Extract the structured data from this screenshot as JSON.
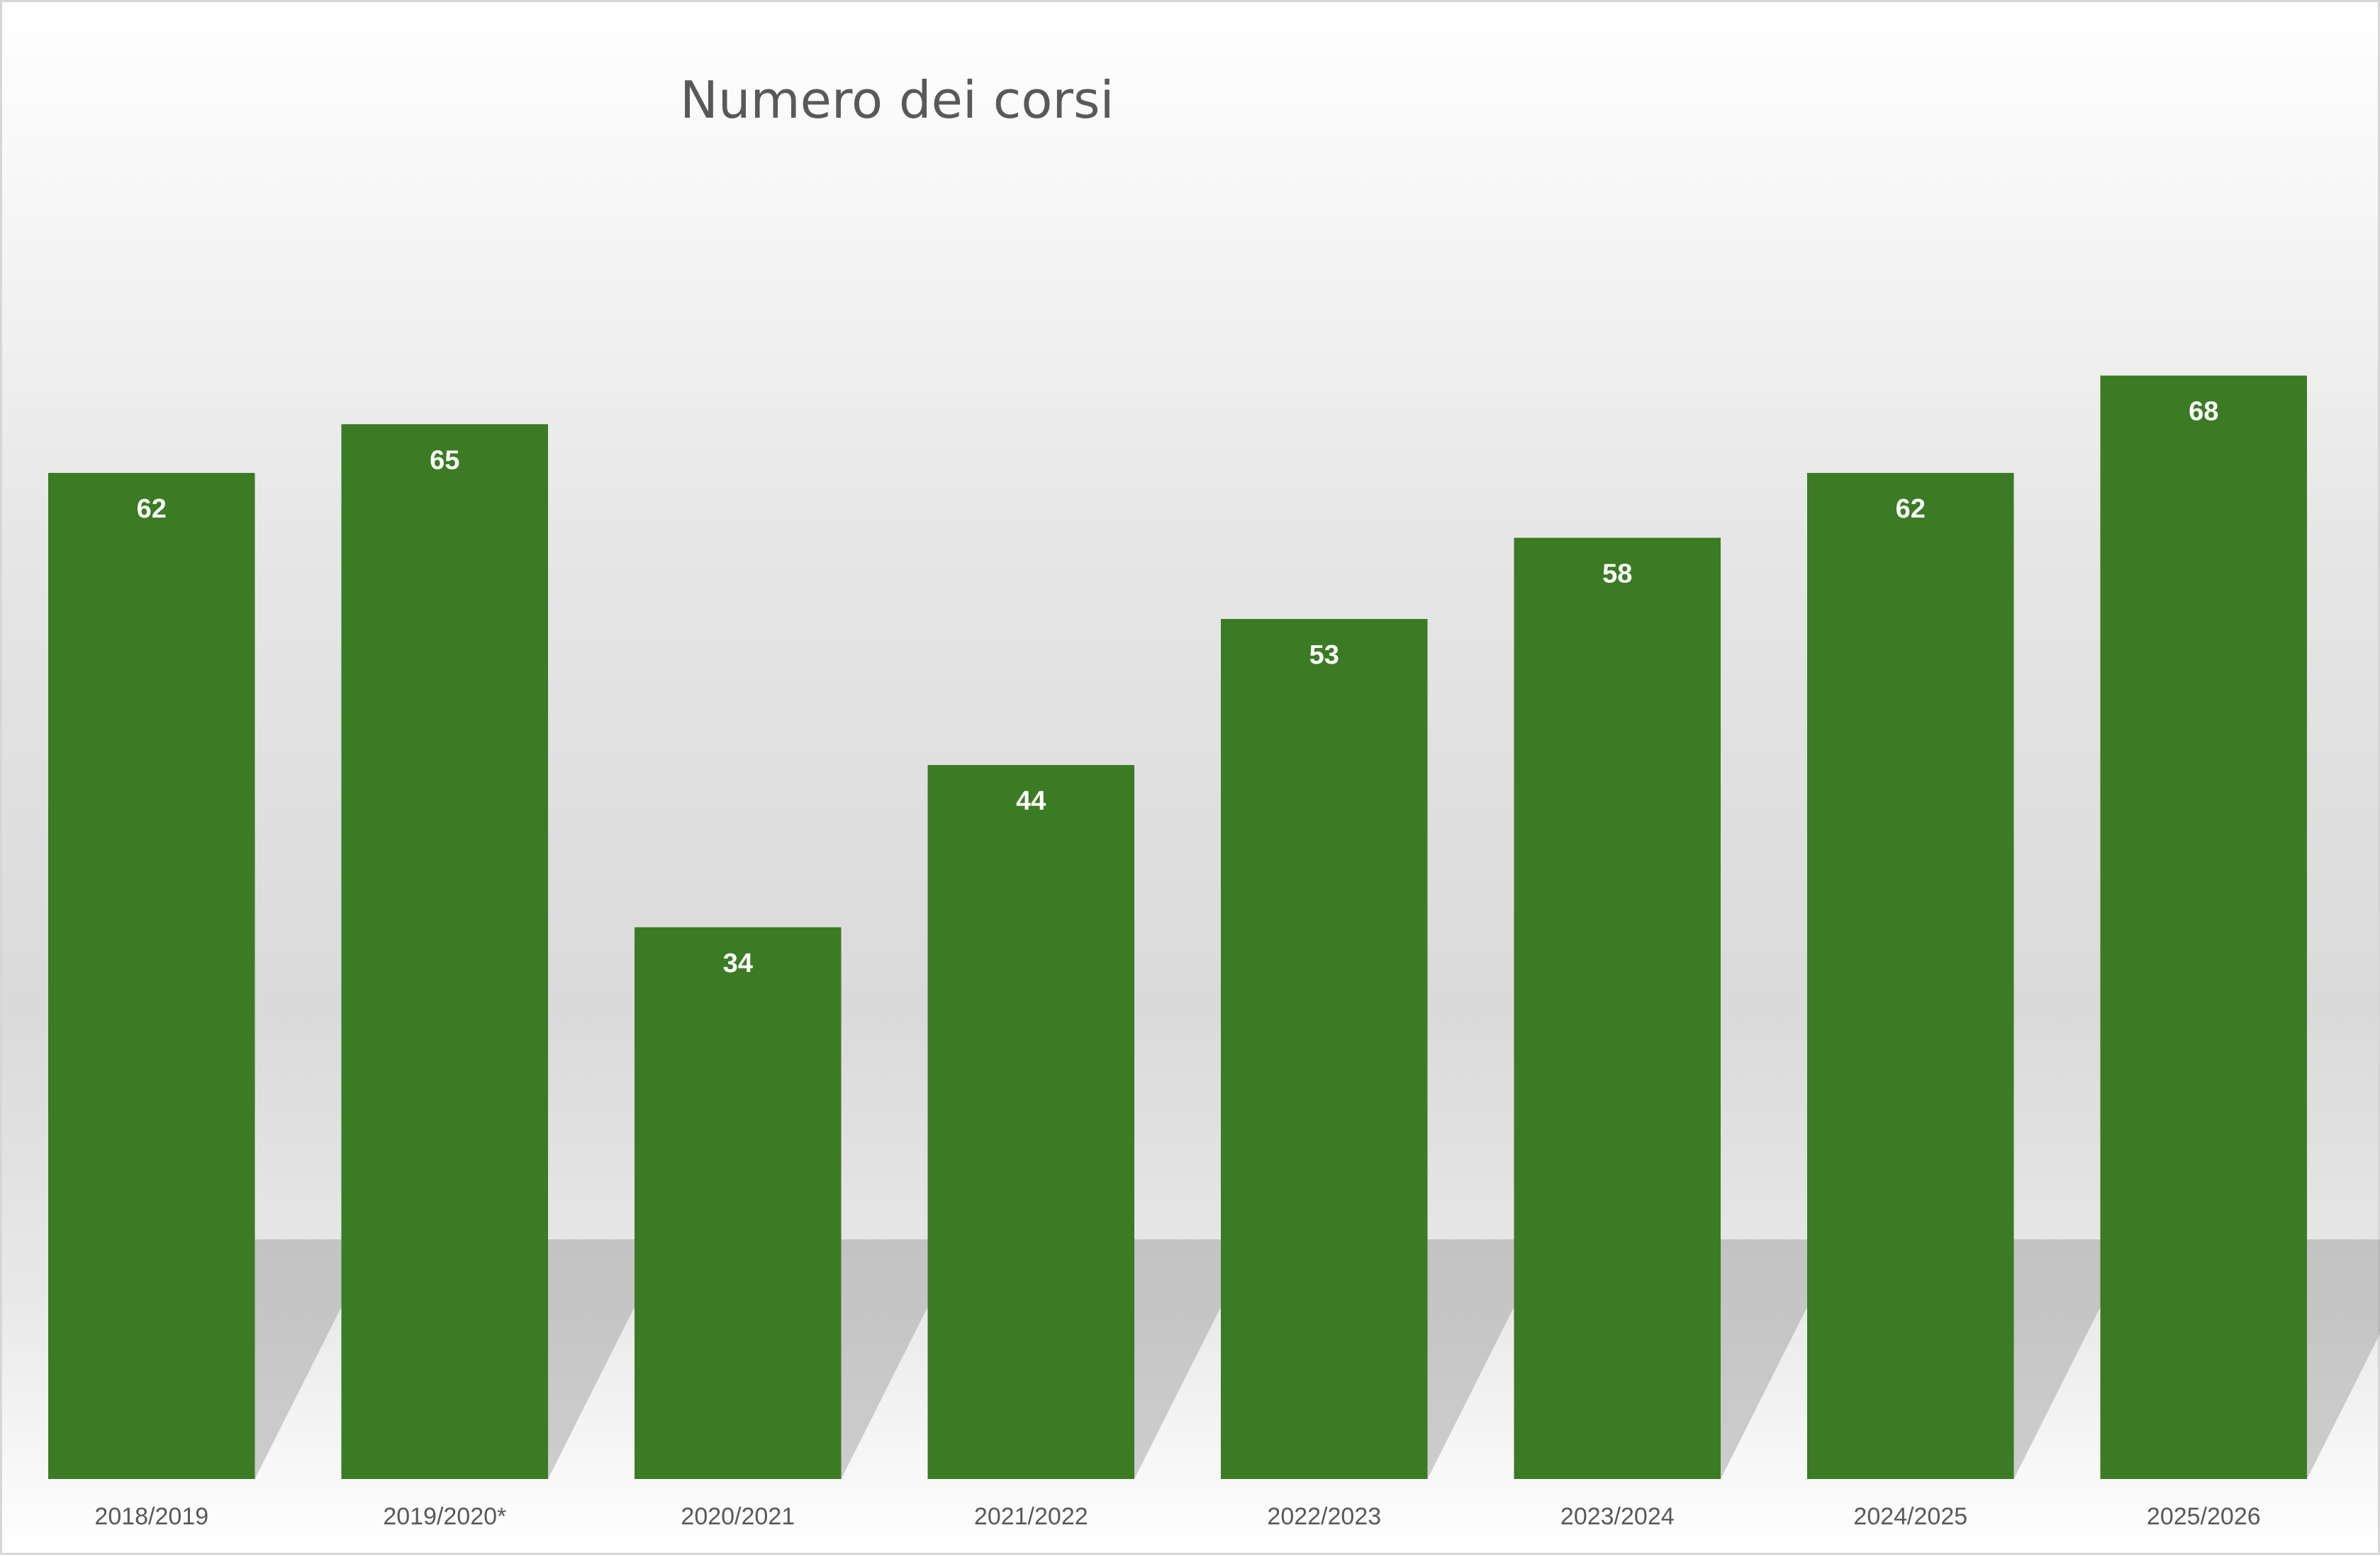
{
  "chart_data": {
    "type": "bar",
    "title": "Numero dei corsi",
    "xlabel": "",
    "ylabel": "",
    "categories": [
      "2018/2019",
      "2019/2020*",
      "2020/2021",
      "2021/2022",
      "2022/2023",
      "2023/2024",
      "2024/2025",
      "2025/2026"
    ],
    "values": [
      62,
      65,
      34,
      44,
      53,
      58,
      62,
      68
    ],
    "ylim": [
      0,
      80
    ],
    "grid": false,
    "legend": "none",
    "bar_color": "#3b7b23",
    "value_label_color": "#ffffff",
    "tick_label_color": "#595959"
  }
}
